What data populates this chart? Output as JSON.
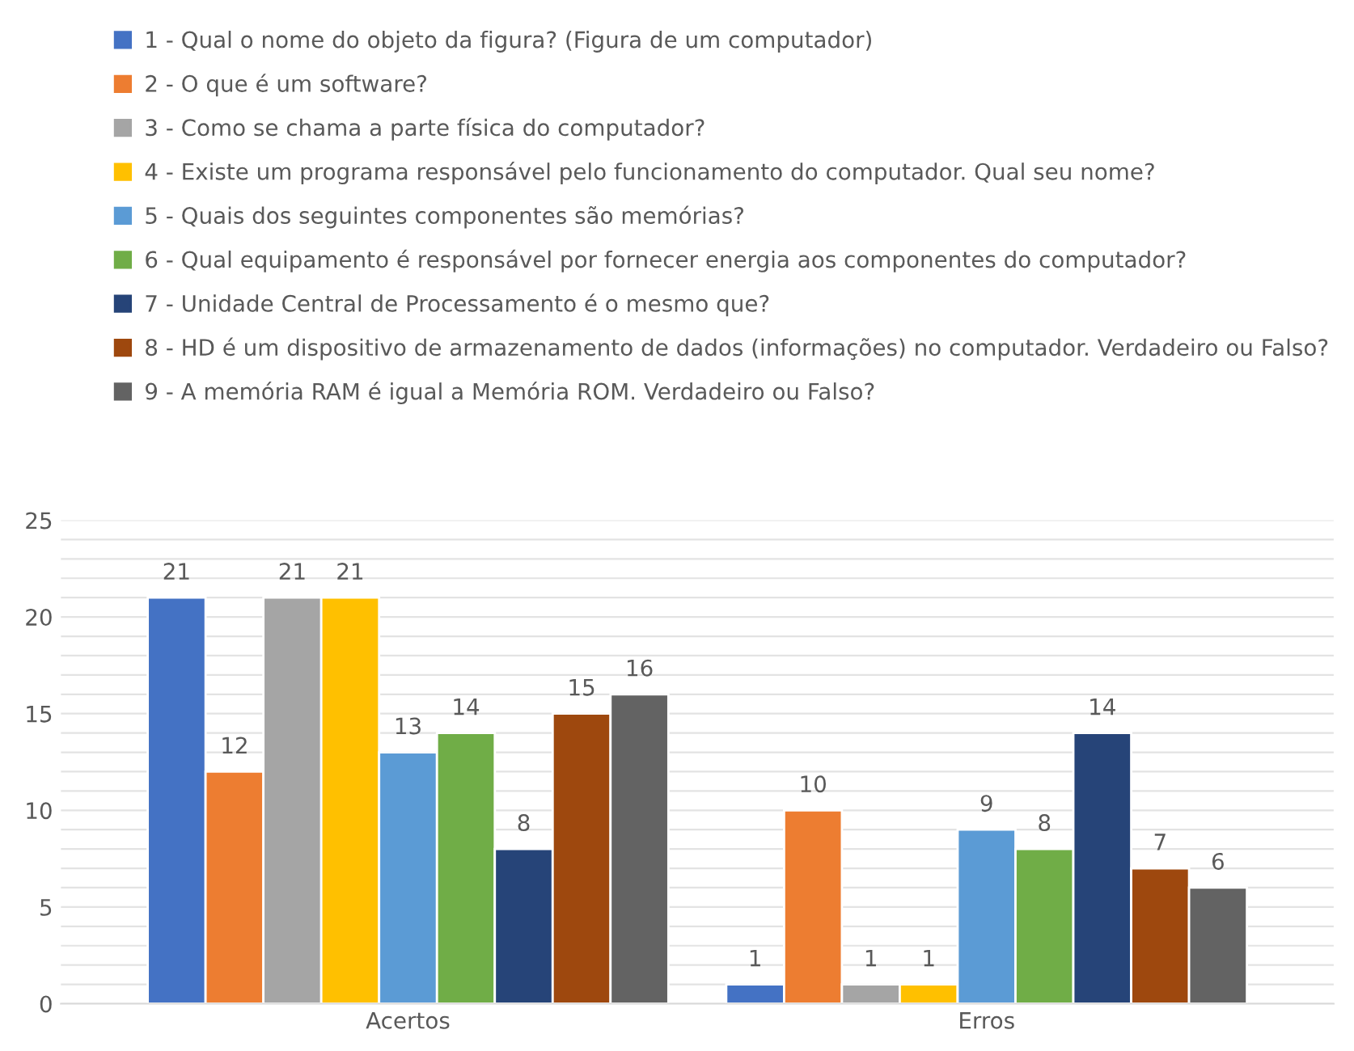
{
  "chart_data": {
    "type": "bar",
    "categories": [
      "Acertos",
      "Erros"
    ],
    "series": [
      {
        "name": "1 - Qual o nome do objeto da figura? (Figura de um computador)",
        "color": "#4472c4",
        "values": [
          21,
          1
        ]
      },
      {
        "name": "2 - O que é um software?",
        "color": "#ed7d31",
        "values": [
          12,
          10
        ]
      },
      {
        "name": "3 - Como se chama a parte física do computador?",
        "color": "#a5a5a5",
        "values": [
          21,
          1
        ]
      },
      {
        "name": "4 - Existe um programa responsável pelo funcionamento do computador. Qual seu nome?",
        "color": "#ffc000",
        "values": [
          21,
          1
        ]
      },
      {
        "name": "5 - Quais dos seguintes componentes são memórias?",
        "color": "#5b9bd5",
        "values": [
          13,
          9
        ]
      },
      {
        "name": "6 - Qual equipamento é responsável por fornecer energia aos componentes do computador?",
        "color": "#70ad47",
        "values": [
          14,
          8
        ]
      },
      {
        "name": "7 - Unidade Central de Processamento é o mesmo que?",
        "color": "#264478",
        "values": [
          8,
          14
        ]
      },
      {
        "name": "8 - HD é um dispositivo de armazenamento de dados (informações) no computador. Verdadeiro ou Falso?",
        "color": "#9e480e",
        "values": [
          15,
          7
        ]
      },
      {
        "name": "9 - A memória RAM é igual a Memória ROM. Verdadeiro ou Falso?",
        "color": "#636363",
        "values": [
          16,
          6
        ]
      }
    ],
    "ylim": [
      0,
      25
    ],
    "yticks": [
      0,
      {
        "value": 1,
        "label": null
      },
      {
        "value": 2,
        "label": null
      },
      {
        "value": 3,
        "label": null
      },
      {
        "value": 4,
        "label": null
      },
      5,
      {
        "value": 6,
        "label": null
      },
      {
        "value": 7,
        "label": null
      },
      {
        "value": 8,
        "label": null
      },
      {
        "value": 9,
        "label": null
      },
      10,
      {
        "value": 11,
        "label": null
      },
      {
        "value": 12,
        "label": null
      },
      {
        "value": 13,
        "label": null
      },
      {
        "value": 14,
        "label": null
      },
      15,
      {
        "value": 16,
        "label": null
      },
      {
        "value": 17,
        "label": null
      },
      {
        "value": 18,
        "label": null
      },
      {
        "value": 19,
        "label": null
      },
      20,
      {
        "value": 21,
        "label": null
      },
      {
        "value": 22,
        "label": null
      },
      {
        "value": 23,
        "label": null
      },
      {
        "value": 24,
        "label": null
      },
      25
    ],
    "grid": "y",
    "legend": "top",
    "data_labels": true
  }
}
